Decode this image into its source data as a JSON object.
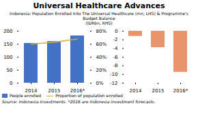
{
  "title": "Universal Healthcare Advances",
  "subtitle": "Indonesia: Population Enrolled Into The Universal Healthcare (mn, LHS) & Programme's Budget Balance\n(IDRbn, RHS)",
  "source": "Source: Indonesia Investments. *2016 are Indonesia investment forecasts.",
  "chart_data": [
    {
      "type": "bar",
      "categories": [
        "2014",
        "2015",
        "2016*"
      ],
      "series": [
        {
          "name": "People enrolled",
          "type": "bar",
          "color": "#4472C4",
          "values": [
            153,
            160,
            182
          ]
        },
        {
          "name": "Proportion of population enrolled",
          "type": "line",
          "axis": "y2",
          "color": "#D4A843",
          "values": [
            60,
            63,
            68
          ]
        }
      ],
      "ylim": [
        0,
        200
      ],
      "yticks": [
        0,
        50,
        100,
        150,
        200
      ],
      "y2lim": [
        0,
        80
      ],
      "y2ticks": [
        {
          "value": 0,
          "label": "0%"
        },
        {
          "value": 20,
          "label": "20%"
        },
        {
          "value": 40,
          "label": "40%"
        },
        {
          "value": 60,
          "label": "60%"
        },
        {
          "value": 80,
          "label": "80%"
        }
      ],
      "grid": false,
      "legend": "lower left"
    },
    {
      "type": "bar",
      "categories": [
        "2014",
        "2015",
        "2016*"
      ],
      "values": [
        -1.2,
        -3.8,
        -9.5
      ],
      "color": "#E8956D",
      "ylim": [
        -12,
        0
      ],
      "yticks": [
        0,
        -2,
        -4,
        -6,
        -8,
        -10,
        -12
      ],
      "grid": false
    }
  ]
}
